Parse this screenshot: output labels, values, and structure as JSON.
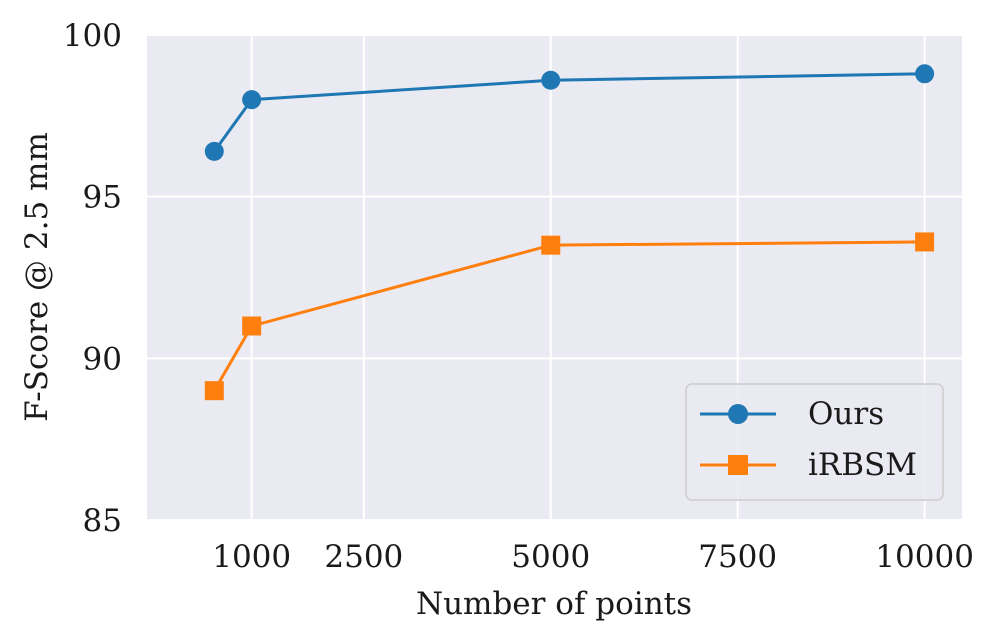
{
  "chart_data": {
    "type": "line",
    "xlabel": "Number of points",
    "ylabel": "F-Score @ 2.5 mm",
    "xlim": [
      -400,
      10500
    ],
    "ylim": [
      85,
      100
    ],
    "xticks": [
      1000,
      2500,
      5000,
      7500,
      10000
    ],
    "xtick_labels": [
      "1000",
      "2500",
      "5000",
      "7500",
      "10000"
    ],
    "yticks": [
      85,
      90,
      95,
      100
    ],
    "ytick_labels": [
      "85",
      "90",
      "95",
      "100"
    ],
    "grid": true,
    "legend_position": "bottom-right",
    "series": [
      {
        "name": "Ours",
        "color": "#1f77b4",
        "marker": "circle",
        "x": [
          500,
          1000,
          5000,
          10000
        ],
        "y": [
          96.4,
          98.0,
          98.6,
          98.8
        ]
      },
      {
        "name": "iRBSM",
        "color": "#ff7f0e",
        "marker": "square",
        "x": [
          500,
          1000,
          5000,
          10000
        ],
        "y": [
          89.0,
          91.0,
          93.5,
          93.6
        ]
      }
    ]
  }
}
